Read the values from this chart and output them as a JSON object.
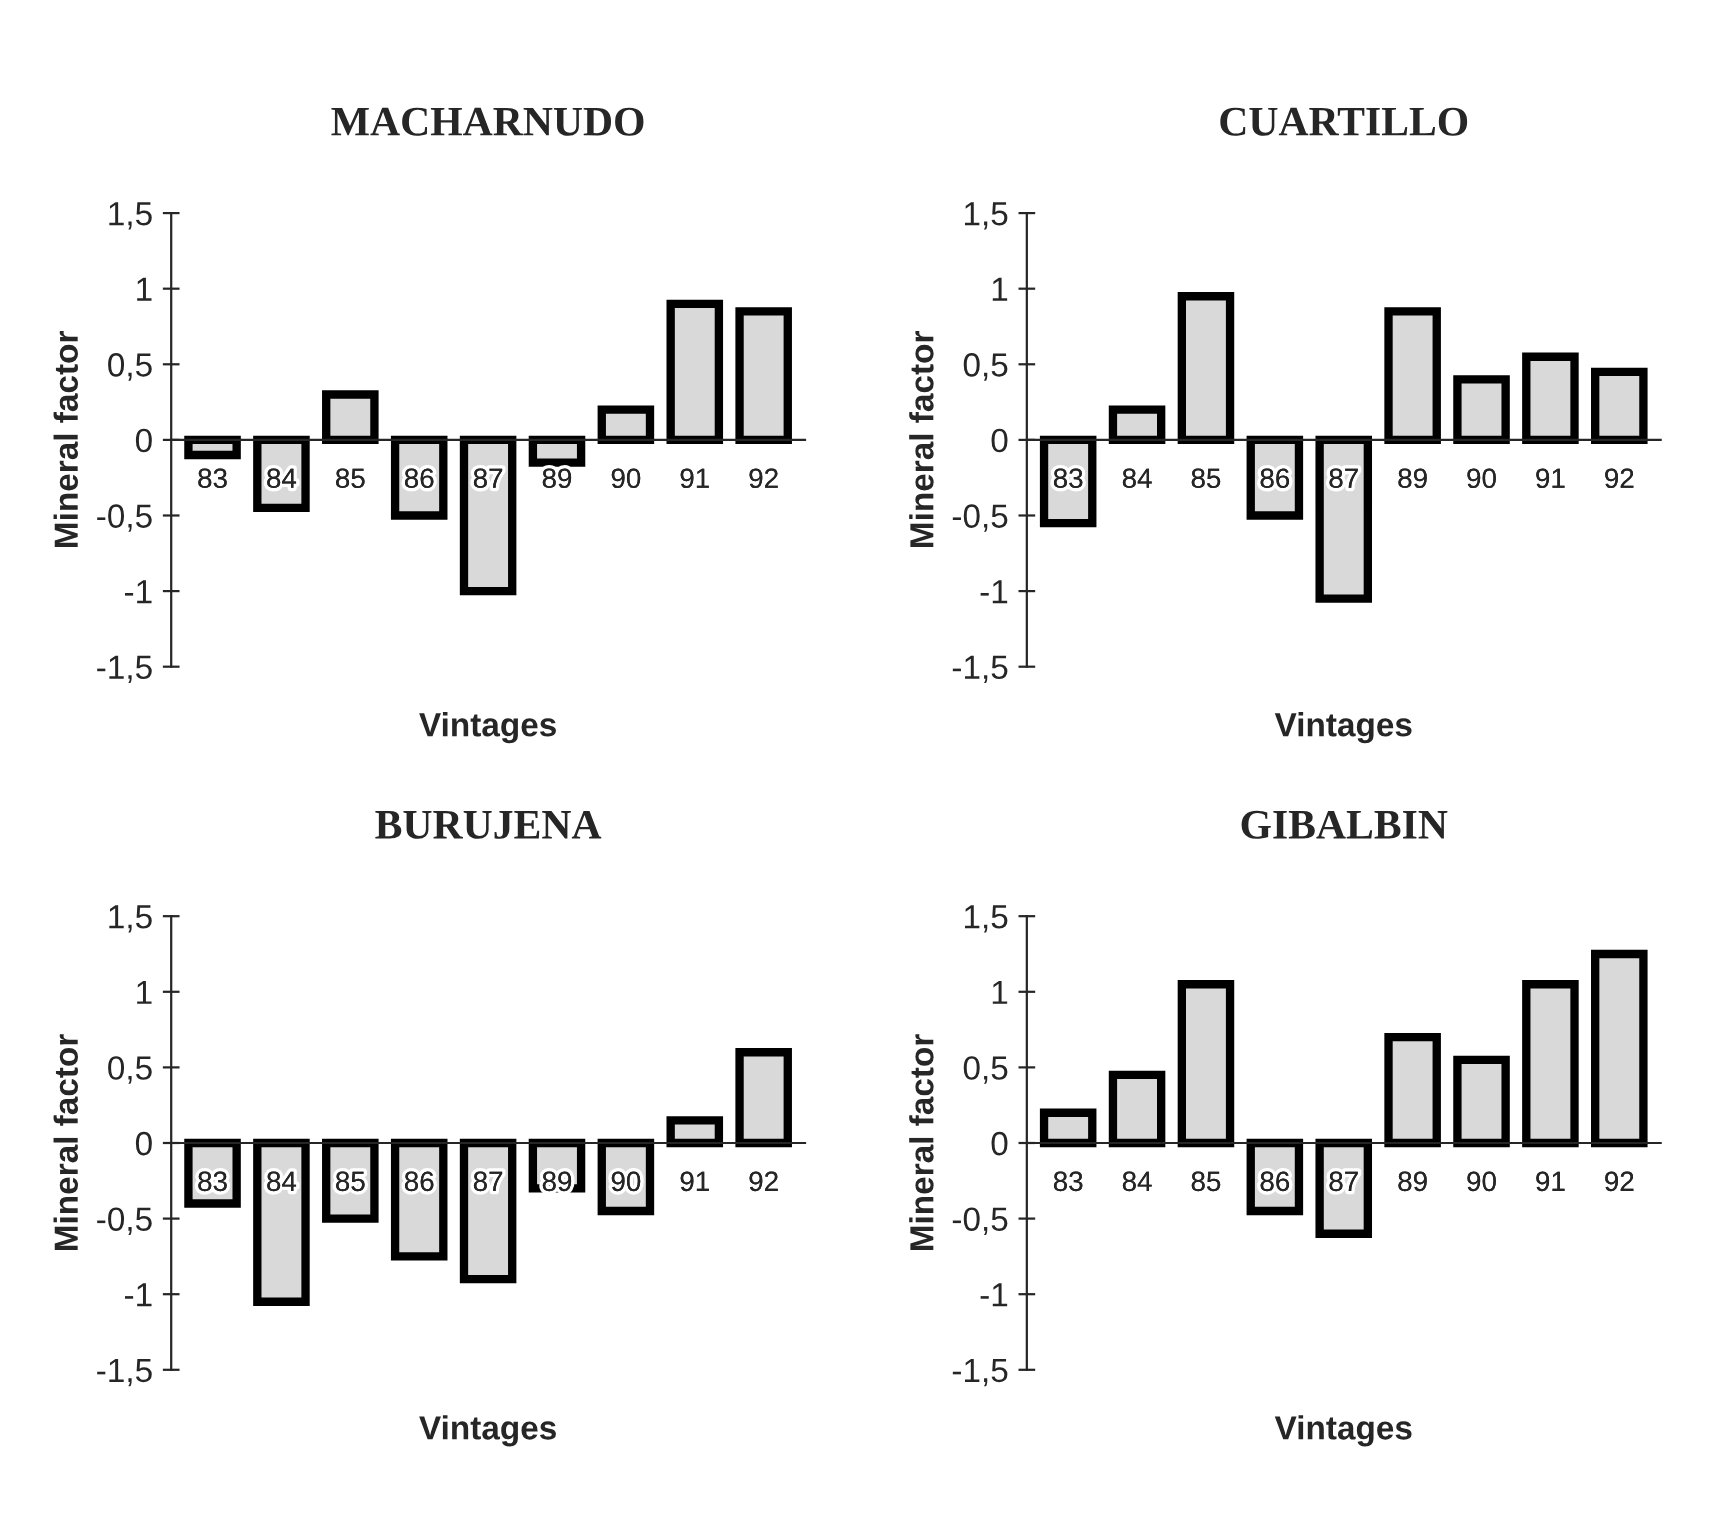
{
  "chart_data": [
    {
      "type": "bar",
      "title": "MACHARNUDO",
      "xlabel": "Vintages",
      "ylabel": "Mineral factor",
      "categories": [
        "83",
        "84",
        "85",
        "86",
        "87",
        "89",
        "90",
        "91",
        "92"
      ],
      "values": [
        -0.1,
        -0.45,
        0.3,
        -0.5,
        -1.0,
        -0.15,
        0.2,
        0.9,
        0.85
      ],
      "color": "#d9d9d9",
      "ylim": [
        -1.5,
        1.5
      ],
      "yticks": [
        {
          "value": -1.5,
          "label": "-1,5"
        },
        -1,
        {
          "value": -0.5,
          "label": "-0,5"
        },
        0,
        {
          "value": 0.5,
          "label": "0,5"
        },
        1,
        {
          "value": 1.5,
          "label": "1,5"
        }
      ],
      "grid": false,
      "legend": false
    },
    {
      "type": "bar",
      "title": "CUARTILLO",
      "xlabel": "Vintages",
      "ylabel": "Mineral factor",
      "categories": [
        "83",
        "84",
        "85",
        "86",
        "87",
        "89",
        "90",
        "91",
        "92"
      ],
      "values": [
        -0.55,
        0.2,
        0.95,
        -0.5,
        -1.05,
        0.85,
        0.4,
        0.55,
        0.45
      ],
      "color": "#d9d9d9",
      "ylim": [
        -1.5,
        1.5
      ],
      "yticks": [
        {
          "value": -1.5,
          "label": "-1,5"
        },
        -1,
        {
          "value": -0.5,
          "label": "-0,5"
        },
        0,
        {
          "value": 0.5,
          "label": "0,5"
        },
        1,
        {
          "value": 1.5,
          "label": "1,5"
        }
      ],
      "grid": false,
      "legend": false
    },
    {
      "type": "bar",
      "title": "BURUJENA",
      "xlabel": "Vintages",
      "ylabel": "Mineral factor",
      "categories": [
        "83",
        "84",
        "85",
        "86",
        "87",
        "89",
        "90",
        "91",
        "92"
      ],
      "values": [
        -0.4,
        -1.05,
        -0.5,
        -0.75,
        -0.9,
        -0.3,
        -0.45,
        0.15,
        0.6
      ],
      "color": "#d9d9d9",
      "ylim": [
        -1.5,
        1.5
      ],
      "yticks": [
        {
          "value": -1.5,
          "label": "-1,5"
        },
        -1,
        {
          "value": -0.5,
          "label": "-0,5"
        },
        0,
        {
          "value": 0.5,
          "label": "0,5"
        },
        1,
        {
          "value": 1.5,
          "label": "1,5"
        }
      ],
      "grid": false,
      "legend": false
    },
    {
      "type": "bar",
      "title": "GIBALBIN",
      "xlabel": "Vintages",
      "ylabel": "Mineral factor",
      "categories": [
        "83",
        "84",
        "85",
        "86",
        "87",
        "89",
        "90",
        "91",
        "92"
      ],
      "values": [
        0.2,
        0.45,
        1.05,
        -0.45,
        -0.6,
        0.7,
        0.55,
        1.05,
        1.25
      ],
      "color": "#d9d9d9",
      "ylim": [
        -1.5,
        1.5
      ],
      "yticks": [
        {
          "value": -1.5,
          "label": "-1,5"
        },
        -1,
        {
          "value": -0.5,
          "label": "-0,5"
        },
        0,
        {
          "value": 0.5,
          "label": "0,5"
        },
        1,
        {
          "value": 1.5,
          "label": "1,5"
        }
      ],
      "grid": false,
      "legend": false
    }
  ]
}
